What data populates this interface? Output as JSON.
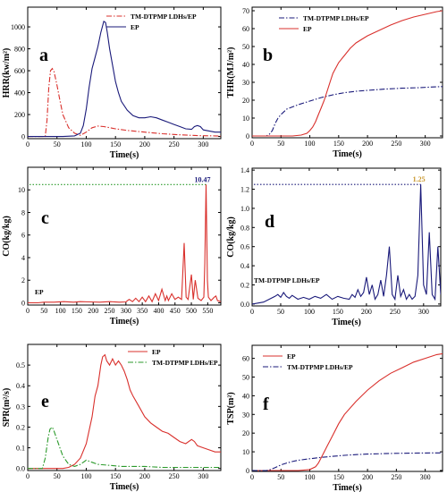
{
  "colors": {
    "red": "#d9302c",
    "blue": "#1a1a7a",
    "green": "#2b9a2b",
    "magenta": "#cc22cc",
    "orange": "#c8962a"
  },
  "chart_data": [
    {
      "id": "a",
      "panel_label": "a",
      "type": "line",
      "xlabel": "Time(s)",
      "ylabel": "HRR(kw/m²)",
      "xlim": [
        0,
        330
      ],
      "ylim": [
        -20,
        1180
      ],
      "xticks": [
        0,
        50,
        100,
        150,
        200,
        250,
        300
      ],
      "yticks": [
        0,
        200,
        400,
        600,
        800,
        1000
      ],
      "legend": "top-center",
      "series": [
        {
          "name": "TM-DTPMP LDHs/EP",
          "color": "#d9302c",
          "dash": "6,2,1.5,2",
          "x": [
            0,
            30,
            33,
            36,
            39,
            42,
            45,
            50,
            55,
            60,
            70,
            80,
            90,
            100,
            110,
            120,
            130,
            150,
            170,
            200,
            230,
            260,
            290,
            320,
            330
          ],
          "y": [
            0,
            0,
            150,
            450,
            600,
            620,
            590,
            470,
            330,
            200,
            80,
            30,
            10,
            40,
            80,
            95,
            90,
            70,
            55,
            40,
            25,
            15,
            8,
            5,
            3
          ]
        },
        {
          "name": "EP",
          "color": "#1a1a7a",
          "dash": "",
          "x": [
            0,
            30,
            60,
            80,
            90,
            95,
            100,
            105,
            110,
            115,
            120,
            125,
            130,
            133,
            136,
            140,
            145,
            150,
            155,
            160,
            170,
            180,
            190,
            200,
            210,
            220,
            230,
            240,
            250,
            260,
            270,
            280,
            285,
            290,
            295,
            300,
            310,
            320,
            330
          ],
          "y": [
            0,
            0,
            0,
            5,
            30,
            100,
            250,
            450,
            620,
            720,
            820,
            950,
            1050,
            1040,
            950,
            800,
            650,
            500,
            400,
            320,
            240,
            190,
            170,
            170,
            180,
            170,
            150,
            130,
            110,
            90,
            70,
            65,
            90,
            100,
            90,
            60,
            50,
            40,
            40
          ]
        }
      ]
    },
    {
      "id": "b",
      "panel_label": "b",
      "type": "line",
      "xlabel": "Time(s)",
      "ylabel": "THR(MJ/m²)",
      "xlim": [
        0,
        330
      ],
      "ylim": [
        -1,
        72
      ],
      "xticks": [
        0,
        50,
        100,
        150,
        200,
        250,
        300
      ],
      "yticks": [
        0,
        10,
        20,
        30,
        40,
        50,
        60,
        70
      ],
      "legend": "top-left",
      "series": [
        {
          "name": "TM-DTPMP LDHs/EP",
          "color": "#1a1a7a",
          "dash": "6,2,1.5,2",
          "x": [
            0,
            25,
            30,
            35,
            40,
            45,
            50,
            60,
            80,
            100,
            120,
            140,
            160,
            180,
            200,
            230,
            260,
            290,
            320,
            330
          ],
          "y": [
            0,
            0,
            1,
            3,
            7,
            10,
            12,
            15,
            17.5,
            19.5,
            21.5,
            23,
            24.2,
            25,
            25.5,
            26.2,
            26.7,
            27,
            27.5,
            27.6
          ]
        },
        {
          "name": "EP",
          "color": "#d9302c",
          "dash": "",
          "x": [
            0,
            70,
            85,
            95,
            100,
            105,
            110,
            115,
            120,
            125,
            130,
            135,
            140,
            150,
            160,
            170,
            180,
            190,
            200,
            220,
            240,
            260,
            280,
            300,
            320,
            330
          ],
          "y": [
            0,
            0,
            0.5,
            1.5,
            3,
            5,
            8,
            12,
            16,
            20,
            25,
            30,
            35,
            41,
            45,
            49,
            52,
            54,
            56,
            59,
            62,
            64.5,
            66.5,
            68,
            69.5,
            70
          ]
        }
      ]
    },
    {
      "id": "c",
      "panel_label": "c",
      "type": "line",
      "xlabel": "Time(s)",
      "ylabel": "CO(kg/kg)",
      "xlim": [
        0,
        590
      ],
      "ylim": [
        -0.2,
        12
      ],
      "xticks": [
        0,
        50,
        100,
        150,
        200,
        250,
        300,
        350,
        400,
        450,
        500,
        550
      ],
      "yticks": [
        0,
        2,
        4,
        6,
        8,
        10
      ],
      "legend": "bottom-left",
      "annotation": {
        "text": "10.47",
        "x": 545,
        "y": 10.47,
        "color": "#1a1a7a"
      },
      "refline": {
        "y": 10.47,
        "color": "#2b9a2b"
      },
      "series": [
        {
          "name": "EP",
          "color": "#d9302c",
          "dash": "",
          "name_color": "#cc22cc",
          "x": [
            0,
            30,
            50,
            80,
            110,
            140,
            160,
            190,
            220,
            250,
            280,
            300,
            310,
            320,
            330,
            340,
            350,
            360,
            370,
            380,
            390,
            400,
            410,
            420,
            425,
            430,
            440,
            450,
            460,
            470,
            478,
            484,
            490,
            500,
            506,
            512,
            520,
            530,
            538,
            541,
            545,
            549,
            552,
            560,
            570,
            575,
            580,
            590
          ],
          "y": [
            0,
            0,
            0.05,
            0.05,
            0.1,
            0.05,
            0.1,
            0.08,
            0.05,
            0.1,
            0.05,
            0.08,
            0.3,
            0.1,
            0.4,
            0.1,
            0.5,
            0.1,
            0.6,
            0.1,
            0.8,
            0.2,
            1.2,
            0.2,
            0.6,
            0.2,
            0.8,
            0.3,
            0.5,
            0.3,
            5.3,
            0.5,
            0.3,
            2.5,
            0.3,
            2.0,
            0.4,
            0.2,
            0.5,
            3.5,
            10.47,
            2.0,
            0.5,
            0.2,
            0.5,
            0.6,
            0.2,
            0.1
          ]
        }
      ]
    },
    {
      "id": "d",
      "panel_label": "d",
      "type": "line",
      "xlabel": "Time(s)",
      "ylabel": "CO(kg/kg)",
      "xlim": [
        0,
        330
      ],
      "ylim": [
        -0.02,
        1.42
      ],
      "xticks": [
        0,
        50,
        100,
        150,
        200,
        250,
        300
      ],
      "yticks": [
        0.0,
        0.2,
        0.4,
        0.6,
        0.8,
        1.0,
        1.2,
        1.4
      ],
      "legend": "bottom-left",
      "annotation": {
        "text": "1.25",
        "x": 295,
        "y": 1.25,
        "color": "#c8962a"
      },
      "refline": {
        "y": 1.25,
        "color": "#1a1a7a"
      },
      "series": [
        {
          "name": "TM-DTPMP LDHs/EP",
          "color": "#1a1a7a",
          "dash": "",
          "name_color": "#cc22cc",
          "x": [
            0,
            20,
            30,
            40,
            45,
            50,
            55,
            60,
            65,
            70,
            80,
            90,
            100,
            110,
            120,
            130,
            140,
            150,
            160,
            170,
            175,
            180,
            185,
            190,
            195,
            200,
            205,
            210,
            215,
            220,
            225,
            230,
            235,
            240,
            245,
            250,
            255,
            260,
            265,
            270,
            275,
            280,
            285,
            290,
            295,
            300,
            305,
            310,
            315,
            320,
            325,
            330
          ],
          "y": [
            0,
            0.02,
            0.05,
            0.08,
            0.1,
            0.07,
            0.12,
            0.08,
            0.06,
            0.09,
            0.05,
            0.07,
            0.05,
            0.08,
            0.06,
            0.1,
            0.05,
            0.08,
            0.06,
            0.05,
            0.1,
            0.07,
            0.15,
            0.08,
            0.12,
            0.28,
            0.1,
            0.2,
            0.05,
            0.1,
            0.25,
            0.08,
            0.3,
            0.6,
            0.1,
            0.05,
            0.3,
            0.08,
            0.15,
            0.05,
            0.1,
            0.05,
            0.08,
            0.3,
            1.25,
            0.2,
            0.1,
            0.75,
            0.1,
            0.05,
            0.6,
            0.1
          ]
        }
      ]
    },
    {
      "id": "e",
      "panel_label": "e",
      "type": "line",
      "xlabel": "Time(s)",
      "ylabel": "SPR(m²/s)",
      "xlim": [
        0,
        330
      ],
      "ylim": [
        -0.01,
        0.6
      ],
      "xticks": [
        0,
        50,
        100,
        150,
        200,
        250,
        300
      ],
      "yticks": [
        0.0,
        0.1,
        0.2,
        0.3,
        0.4,
        0.5
      ],
      "legend": "top-right",
      "series": [
        {
          "name": "EP",
          "color": "#d9302c",
          "dash": "",
          "x": [
            0,
            60,
            70,
            80,
            90,
            100,
            110,
            115,
            120,
            125,
            128,
            132,
            135,
            140,
            145,
            150,
            155,
            160,
            165,
            170,
            175,
            180,
            190,
            200,
            210,
            220,
            230,
            240,
            250,
            260,
            270,
            280,
            285,
            290,
            300,
            310,
            320,
            330
          ],
          "y": [
            0,
            0,
            0.005,
            0.02,
            0.05,
            0.12,
            0.25,
            0.35,
            0.4,
            0.5,
            0.54,
            0.55,
            0.52,
            0.5,
            0.53,
            0.5,
            0.52,
            0.5,
            0.47,
            0.43,
            0.38,
            0.35,
            0.3,
            0.25,
            0.22,
            0.2,
            0.18,
            0.17,
            0.15,
            0.13,
            0.12,
            0.14,
            0.13,
            0.11,
            0.1,
            0.09,
            0.08,
            0.08
          ]
        },
        {
          "name": "TM-DTPMP LDHs/EP",
          "color": "#2b9a2b",
          "dash": "6,2,1.5,2",
          "x": [
            0,
            25,
            30,
            35,
            38,
            42,
            45,
            50,
            55,
            60,
            70,
            80,
            90,
            100,
            110,
            120,
            140,
            160,
            180,
            200,
            230,
            260,
            290,
            330
          ],
          "y": [
            0,
            0,
            0.05,
            0.15,
            0.19,
            0.2,
            0.18,
            0.14,
            0.1,
            0.06,
            0.02,
            0.01,
            0.02,
            0.04,
            0.03,
            0.02,
            0.015,
            0.01,
            0.01,
            0.01,
            0.005,
            0.005,
            0.005,
            0.005
          ]
        }
      ]
    },
    {
      "id": "f",
      "panel_label": "f",
      "type": "line",
      "xlabel": "Time(s)",
      "ylabel": "TSP(m²)",
      "xlim": [
        0,
        330
      ],
      "ylim": [
        -0.5,
        67
      ],
      "xticks": [
        0,
        50,
        100,
        150,
        200,
        250,
        300
      ],
      "yticks": [
        0,
        10,
        20,
        30,
        40,
        50,
        60
      ],
      "legend": "top-left",
      "series": [
        {
          "name": "EP",
          "color": "#d9302c",
          "dash": "",
          "x": [
            0,
            80,
            100,
            110,
            115,
            120,
            130,
            140,
            150,
            160,
            180,
            200,
            220,
            240,
            260,
            280,
            300,
            320,
            330
          ],
          "y": [
            0,
            0,
            0.5,
            2,
            4,
            7,
            13,
            19,
            25,
            30,
            37,
            43,
            48,
            52,
            55,
            58,
            60,
            62,
            62.5
          ]
        },
        {
          "name": "TM-DTPMP LDHs/EP",
          "color": "#1a1a7a",
          "dash": "6,2,1.5,2",
          "x": [
            0,
            25,
            30,
            40,
            50,
            60,
            70,
            80,
            100,
            120,
            140,
            160,
            180,
            200,
            240,
            280,
            320,
            330
          ],
          "y": [
            0,
            0,
            0.3,
            1.5,
            3,
            4,
            4.8,
            5.5,
            6.3,
            7,
            7.6,
            8.1,
            8.5,
            8.8,
            9.1,
            9.3,
            9.4,
            9.4
          ]
        }
      ]
    }
  ]
}
